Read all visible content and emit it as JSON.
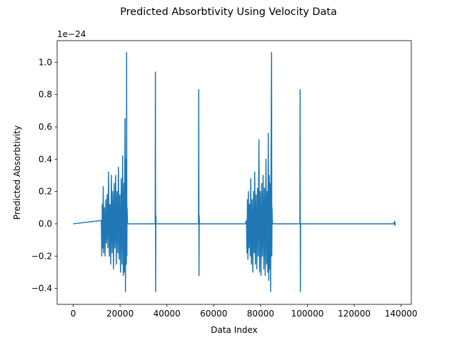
{
  "chart_data": {
    "type": "line",
    "title": "Predicted Absorbtivity Using Velocity Data",
    "x_label": "Data Index",
    "y_label": "Predicted Absorbtivity",
    "y_offset_label": "1e−24",
    "color": "#1f77b4",
    "xlim": [
      -6875,
      144375
    ],
    "ylim": [
      -0.499,
      1.134
    ],
    "xticks": [
      0,
      20000,
      40000,
      60000,
      80000,
      100000,
      120000,
      140000
    ],
    "yticks": [
      {
        "value": -0.4,
        "label": "−0.4"
      },
      {
        "value": -0.2,
        "label": "−0.2"
      },
      {
        "value": 0,
        "label": "0.0"
      },
      {
        "value": 0.2,
        "label": "0.2"
      },
      {
        "value": 0.4,
        "label": "0.4"
      },
      {
        "value": 0.6,
        "label": "0.6"
      },
      {
        "value": 0.8,
        "label": "0.8"
      },
      {
        "value": 1,
        "label": "1.0"
      }
    ],
    "x": [
      0,
      12000,
      12200,
      12400,
      12600,
      12800,
      13000,
      13300,
      13600,
      13900,
      14200,
      14500,
      14800,
      15100,
      15400,
      15700,
      16000,
      16300,
      16600,
      16900,
      17200,
      17500,
      17800,
      18100,
      18400,
      18700,
      19000,
      19300,
      19600,
      19900,
      20200,
      20500,
      20800,
      21100,
      21400,
      21700,
      21900,
      22100,
      22300,
      22500,
      22700,
      22800,
      22900,
      23000,
      23200,
      35000,
      35100,
      35200,
      35300,
      35400,
      53500,
      53600,
      53700,
      53800,
      53900,
      73500,
      74000,
      74200,
      74400,
      74600,
      74800,
      75000,
      75300,
      75600,
      75800,
      76100,
      76400,
      76700,
      77000,
      77300,
      77500,
      77800,
      78100,
      78400,
      78700,
      79000,
      79300,
      79600,
      79900,
      80200,
      80500,
      80800,
      81100,
      81400,
      81700,
      82000,
      82300,
      82600,
      82900,
      83100,
      83300,
      83500,
      83700,
      83900,
      84100,
      84300,
      84500,
      84700,
      84800,
      84900,
      85000,
      85200,
      96800,
      96900,
      97000,
      97100,
      137000,
      137200,
      137400,
      137500
    ],
    "values": [
      0,
      0.02,
      -0.2,
      0.12,
      -0.15,
      0.23,
      -0.18,
      0.1,
      -0.2,
      0.15,
      -0.12,
      0.18,
      -0.15,
      0.32,
      -0.2,
      0.12,
      -0.25,
      0.3,
      -0.18,
      0.2,
      -0.28,
      0.25,
      -0.15,
      0.3,
      -0.25,
      0.2,
      -0.18,
      0.35,
      -0.22,
      0.18,
      -0.3,
      0.28,
      -0.25,
      0.42,
      -0.32,
      0.25,
      -0.3,
      0.65,
      -0.42,
      0.4,
      -0.25,
      1.06,
      -0.2,
      0.1,
      0,
      0,
      0.94,
      -0.42,
      0.05,
      0,
      0,
      0.83,
      -0.32,
      0.05,
      0,
      0,
      0.02,
      -0.18,
      0.15,
      -0.22,
      0.2,
      -0.15,
      0.12,
      -0.2,
      0.28,
      -0.25,
      0.15,
      -0.3,
      0.2,
      -0.18,
      0.32,
      -0.25,
      0.18,
      -0.28,
      0.22,
      -0.2,
      0.52,
      -0.3,
      0.2,
      -0.32,
      0.25,
      -0.2,
      0.3,
      -0.28,
      0.22,
      -0.32,
      0.4,
      -0.25,
      0.2,
      -0.3,
      0.56,
      -0.35,
      0.3,
      -0.28,
      0.25,
      -0.42,
      0.45,
      1.06,
      -0.2,
      0.1,
      0.02,
      0,
      0,
      0.83,
      -0.42,
      0,
      0,
      0.015,
      -0.01,
      0.01
    ]
  }
}
